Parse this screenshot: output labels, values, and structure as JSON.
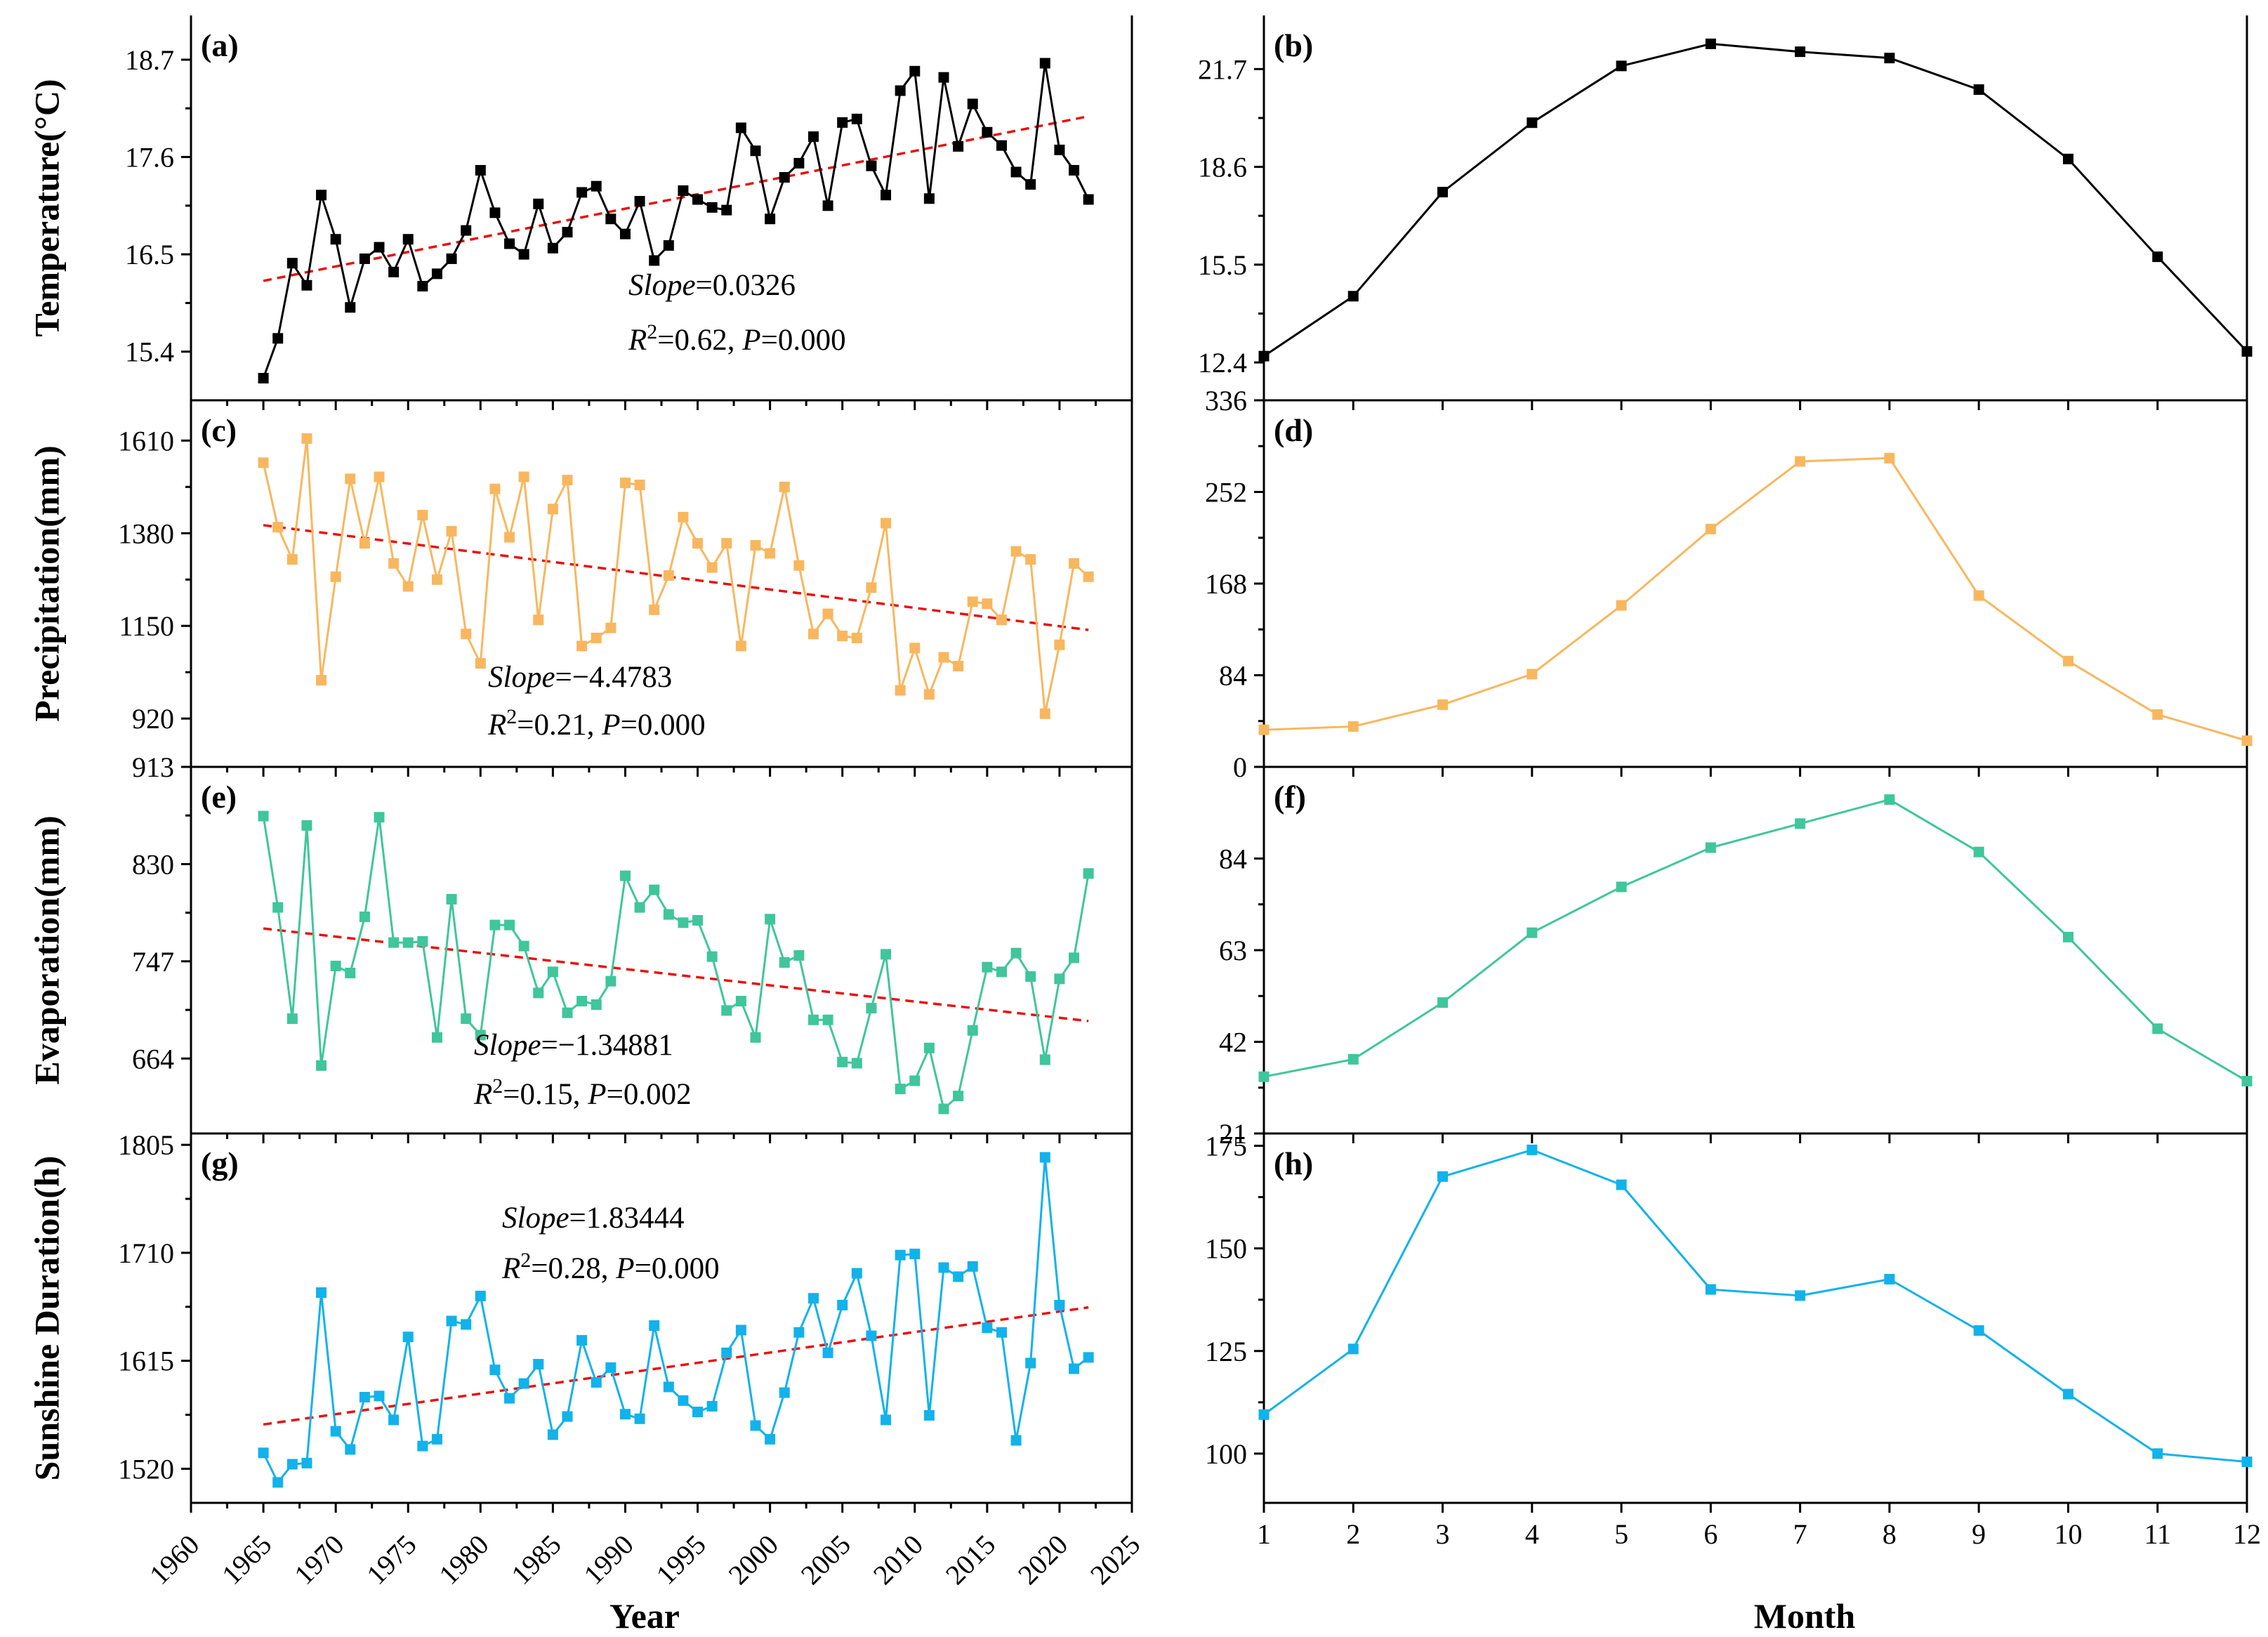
{
  "figure": {
    "left_xlabel": "Year",
    "right_xlabel": "Month"
  },
  "chart_data": [
    {
      "id": "a",
      "panel_label": "(a)",
      "type": "line",
      "color": "#000000",
      "ylabel": "Temperature(°C)",
      "xlabel": "",
      "xlim": [
        1960,
        2025
      ],
      "ylim": [
        14.85,
        19.2
      ],
      "yticks": [
        15.4,
        16.5,
        17.6,
        18.7
      ],
      "ytick_labels": [
        "15.4",
        "16.5",
        "17.6",
        "18.7"
      ],
      "xticks": [
        1960,
        1965,
        1970,
        1975,
        1980,
        1985,
        1990,
        1995,
        2000,
        2005,
        2010,
        2015,
        2020,
        2025
      ],
      "show_xtick_labels": false,
      "x": [
        1965,
        1966,
        1967,
        1968,
        1969,
        1970,
        1971,
        1972,
        1973,
        1974,
        1975,
        1976,
        1977,
        1978,
        1979,
        1980,
        1981,
        1982,
        1983,
        1984,
        1985,
        1986,
        1987,
        1988,
        1989,
        1990,
        1991,
        1992,
        1993,
        1994,
        1995,
        1996,
        1997,
        1998,
        1999,
        2000,
        2001,
        2002,
        2003,
        2004,
        2005,
        2006,
        2007,
        2008,
        2009,
        2010,
        2011,
        2012,
        2013,
        2014,
        2015,
        2016,
        2017,
        2018,
        2019,
        2020,
        2021,
        2022
      ],
      "values": [
        15.1,
        15.55,
        16.4,
        16.15,
        17.17,
        16.67,
        15.9,
        16.45,
        16.58,
        16.3,
        16.67,
        16.14,
        16.28,
        16.45,
        16.77,
        17.45,
        16.97,
        16.62,
        16.5,
        17.07,
        16.57,
        16.75,
        17.2,
        17.27,
        16.9,
        16.73,
        17.1,
        16.43,
        16.6,
        17.22,
        17.12,
        17.03,
        17.0,
        17.93,
        17.67,
        16.9,
        17.37,
        17.53,
        17.83,
        17.05,
        17.99,
        18.03,
        17.5,
        17.17,
        18.35,
        18.57,
        17.13,
        18.5,
        17.72,
        18.2,
        17.88,
        17.73,
        17.43,
        17.29,
        18.66,
        17.68,
        17.45,
        17.12
      ],
      "trend": {
        "x": [
          1965,
          2022
        ],
        "y": [
          16.2,
          18.06
        ]
      },
      "annotation": {
        "slope_label": "Slope",
        "slope_value": "=0.0326",
        "r2_label": "R",
        "r2_sup": "2",
        "r2_value": "=0.62, ",
        "p_label": "P",
        "p_value": "=0.000"
      }
    },
    {
      "id": "b",
      "panel_label": "(b)",
      "type": "line",
      "color": "#000000",
      "ylabel": "",
      "xlabel": "",
      "xlim": [
        1,
        12
      ],
      "ylim": [
        11.2,
        23.4
      ],
      "yticks": [
        12.4,
        15.5,
        18.6,
        21.7
      ],
      "ytick_labels": [
        "12.4",
        "15.5",
        "18.6",
        "21.7"
      ],
      "xticks": [
        1,
        2,
        3,
        4,
        5,
        6,
        7,
        8,
        9,
        10,
        11,
        12
      ],
      "show_xtick_labels": false,
      "x": [
        1,
        2,
        3,
        4,
        5,
        6,
        7,
        8,
        9,
        10,
        11,
        12
      ],
      "values": [
        12.6,
        14.5,
        17.8,
        20.0,
        21.8,
        22.5,
        22.25,
        22.05,
        21.05,
        18.85,
        15.75,
        12.75
      ]
    },
    {
      "id": "c",
      "panel_label": "(c)",
      "type": "line",
      "color": "#F8B75F",
      "ylabel": "Precipitation(mm)",
      "xlabel": "",
      "xlim": [
        1960,
        2025
      ],
      "ylim": [
        800,
        1710
      ],
      "yticks": [
        920,
        1150,
        1380,
        1610
      ],
      "ytick_labels": [
        "920",
        "1150",
        "1380",
        "1610"
      ],
      "xticks": [
        1960,
        1965,
        1970,
        1975,
        1980,
        1985,
        1990,
        1995,
        2000,
        2005,
        2010,
        2015,
        2020,
        2025
      ],
      "show_xtick_labels": false,
      "x": [
        1965,
        1966,
        1967,
        1968,
        1969,
        1970,
        1971,
        1972,
        1973,
        1974,
        1975,
        1976,
        1977,
        1978,
        1979,
        1980,
        1981,
        1982,
        1983,
        1984,
        1985,
        1986,
        1987,
        1988,
        1989,
        1990,
        1991,
        1992,
        1993,
        1994,
        1995,
        1996,
        1997,
        1998,
        1999,
        2000,
        2001,
        2002,
        2003,
        2004,
        2005,
        2006,
        2007,
        2008,
        2009,
        2010,
        2011,
        2012,
        2013,
        2014,
        2015,
        2016,
        2017,
        2018,
        2019,
        2020,
        2021,
        2022
      ],
      "values": [
        1555,
        1395,
        1315,
        1615,
        1015,
        1272,
        1515,
        1355,
        1520,
        1305,
        1248,
        1425,
        1265,
        1385,
        1130,
        1057,
        1490,
        1370,
        1520,
        1165,
        1440,
        1512,
        1100,
        1120,
        1145,
        1505,
        1500,
        1190,
        1275,
        1420,
        1355,
        1295,
        1355,
        1100,
        1350,
        1330,
        1495,
        1300,
        1130,
        1180,
        1125,
        1120,
        1245,
        1405,
        990,
        1095,
        980,
        1072,
        1050,
        1210,
        1205,
        1165,
        1335,
        1315,
        932,
        1103,
        1305,
        1272
      ],
      "trend": {
        "x": [
          1965,
          2022
        ],
        "y": [
          1400,
          1140
        ]
      },
      "annotation": {
        "slope_label": "Slope",
        "slope_value": "=−4.4783",
        "r2_label": "R",
        "r2_sup": "2",
        "r2_value": "=0.21, ",
        "p_label": "P",
        "p_value": "=0.000"
      }
    },
    {
      "id": "d",
      "panel_label": "(d)",
      "type": "line",
      "color": "#F8B75F",
      "ylabel": "",
      "xlabel": "",
      "xlim": [
        1,
        12
      ],
      "ylim": [
        0,
        336
      ],
      "yticks": [
        0,
        84,
        168,
        252,
        336
      ],
      "ytick_labels": [
        "0",
        "84",
        "168",
        "252",
        "336"
      ],
      "xticks": [
        1,
        2,
        3,
        4,
        5,
        6,
        7,
        8,
        9,
        10,
        11,
        12
      ],
      "show_xtick_labels": false,
      "x": [
        1,
        2,
        3,
        4,
        5,
        6,
        7,
        8,
        9,
        10,
        11,
        12
      ],
      "values": [
        34,
        37,
        57,
        85,
        148,
        218,
        280,
        283,
        157,
        97,
        48,
        24
      ]
    },
    {
      "id": "e",
      "panel_label": "(e)",
      "type": "line",
      "color": "#3FC69A",
      "ylabel": "Evaporation(mm)",
      "xlabel": "",
      "xlim": [
        1960,
        2025
      ],
      "ylim": [
        600,
        913
      ],
      "yticks": [
        664,
        747,
        830,
        913
      ],
      "ytick_labels": [
        "664",
        "747",
        "830",
        "913"
      ],
      "xticks": [
        1960,
        1965,
        1970,
        1975,
        1980,
        1985,
        1990,
        1995,
        2000,
        2005,
        2010,
        2015,
        2020,
        2025
      ],
      "show_xtick_labels": false,
      "x": [
        1965,
        1966,
        1967,
        1968,
        1969,
        1970,
        1971,
        1972,
        1973,
        1974,
        1975,
        1976,
        1977,
        1978,
        1979,
        1980,
        1981,
        1982,
        1983,
        1984,
        1985,
        1986,
        1987,
        1988,
        1989,
        1990,
        1991,
        1992,
        1993,
        1994,
        1995,
        1996,
        1997,
        1998,
        1999,
        2000,
        2001,
        2002,
        2003,
        2004,
        2005,
        2006,
        2007,
        2008,
        2009,
        2010,
        2011,
        2012,
        2013,
        2014,
        2015,
        2016,
        2017,
        2018,
        2019,
        2020,
        2021,
        2022
      ],
      "values": [
        871,
        793,
        698,
        863,
        658,
        743,
        737,
        785,
        870,
        763,
        763,
        764,
        682,
        800,
        698,
        684,
        778,
        778,
        760,
        720,
        738,
        703,
        713,
        710,
        730,
        820,
        793,
        808,
        787,
        780,
        782,
        751,
        705,
        713,
        682,
        783,
        746,
        752,
        697,
        697,
        661,
        660,
        707,
        753,
        638,
        645,
        673,
        621,
        632,
        688,
        742,
        738,
        754,
        734,
        663,
        732,
        750,
        822
      ],
      "trend": {
        "x": [
          1965,
          2022
        ],
        "y": [
          775,
          696
        ]
      },
      "annotation": {
        "slope_label": "Slope",
        "slope_value": "=−1.34881",
        "r2_label": "R",
        "r2_sup": "2",
        "r2_value": "=0.15, ",
        "p_label": "P",
        "p_value": "=0.002"
      }
    },
    {
      "id": "f",
      "panel_label": "(f)",
      "type": "line",
      "color": "#3FC69A",
      "ylabel": "",
      "xlabel": "",
      "xlim": [
        1,
        12
      ],
      "ylim": [
        21,
        105
      ],
      "yticks": [
        21,
        42,
        63,
        84
      ],
      "ytick_labels": [
        "21",
        "42",
        "63",
        "84"
      ],
      "xticks": [
        1,
        2,
        3,
        4,
        5,
        6,
        7,
        8,
        9,
        10,
        11,
        12
      ],
      "show_xtick_labels": false,
      "x": [
        1,
        2,
        3,
        4,
        5,
        6,
        7,
        8,
        9,
        10,
        11,
        12
      ],
      "values": [
        34,
        38,
        51,
        67,
        77.5,
        86.5,
        92,
        97.5,
        85.5,
        66,
        45,
        33
      ]
    },
    {
      "id": "g",
      "panel_label": "(g)",
      "type": "line",
      "color": "#12B2EA",
      "ylabel": "Sunshine Duration(h)",
      "xlabel": "Year",
      "xlim": [
        1960,
        2025
      ],
      "ylim": [
        1490,
        1815
      ],
      "yticks": [
        1520,
        1615,
        1710,
        1805
      ],
      "ytick_labels": [
        "1520",
        "1615",
        "1710",
        "1805"
      ],
      "xticks": [
        1960,
        1965,
        1970,
        1975,
        1980,
        1985,
        1990,
        1995,
        2000,
        2005,
        2010,
        2015,
        2020,
        2025
      ],
      "show_xtick_labels": true,
      "x": [
        1965,
        1966,
        1967,
        1968,
        1969,
        1970,
        1971,
        1972,
        1973,
        1974,
        1975,
        1976,
        1977,
        1978,
        1979,
        1980,
        1981,
        1982,
        1983,
        1984,
        1985,
        1986,
        1987,
        1988,
        1989,
        1990,
        1991,
        1992,
        1993,
        1994,
        1995,
        1996,
        1997,
        1998,
        1999,
        2000,
        2001,
        2002,
        2003,
        2004,
        2005,
        2006,
        2007,
        2008,
        2009,
        2010,
        2011,
        2012,
        2013,
        2014,
        2015,
        2016,
        2017,
        2018,
        2019,
        2020,
        2021,
        2022
      ],
      "values": [
        1534,
        1508,
        1524,
        1525,
        1675,
        1553,
        1537,
        1583,
        1584,
        1563,
        1636,
        1540,
        1546,
        1650,
        1647,
        1672,
        1607,
        1582,
        1595,
        1612,
        1550,
        1566,
        1633,
        1596,
        1609,
        1568,
        1564,
        1646,
        1592,
        1580,
        1570,
        1575,
        1622,
        1642,
        1558,
        1546,
        1587,
        1640,
        1670,
        1622,
        1664,
        1692,
        1637,
        1563,
        1708,
        1709,
        1567,
        1697,
        1689,
        1698,
        1644,
        1640,
        1545,
        1613,
        1794,
        1664,
        1608,
        1618
      ],
      "trend": {
        "x": [
          1965,
          2022
        ],
        "y": [
          1559,
          1662
        ]
      },
      "annotation": {
        "slope_label": "Slope",
        "slope_value": "=1.83444",
        "r2_label": "R",
        "r2_sup": "2",
        "r2_value": "=0.28, ",
        "p_label": "P",
        "p_value": "=0.000"
      }
    },
    {
      "id": "h",
      "panel_label": "(h)",
      "type": "line",
      "color": "#12B2EA",
      "ylabel": "",
      "xlabel": "Month",
      "xlim": [
        1,
        12
      ],
      "ylim": [
        88,
        178
      ],
      "yticks": [
        100,
        125,
        150,
        175
      ],
      "ytick_labels": [
        "100",
        "125",
        "150",
        "175"
      ],
      "xticks": [
        1,
        2,
        3,
        4,
        5,
        6,
        7,
        8,
        9,
        10,
        11,
        12
      ],
      "show_xtick_labels": true,
      "x": [
        1,
        2,
        3,
        4,
        5,
        6,
        7,
        8,
        9,
        10,
        11,
        12
      ],
      "values": [
        109.5,
        125.5,
        167.5,
        174,
        165.5,
        140,
        138.5,
        142.5,
        130,
        114.5,
        100,
        98
      ]
    }
  ]
}
